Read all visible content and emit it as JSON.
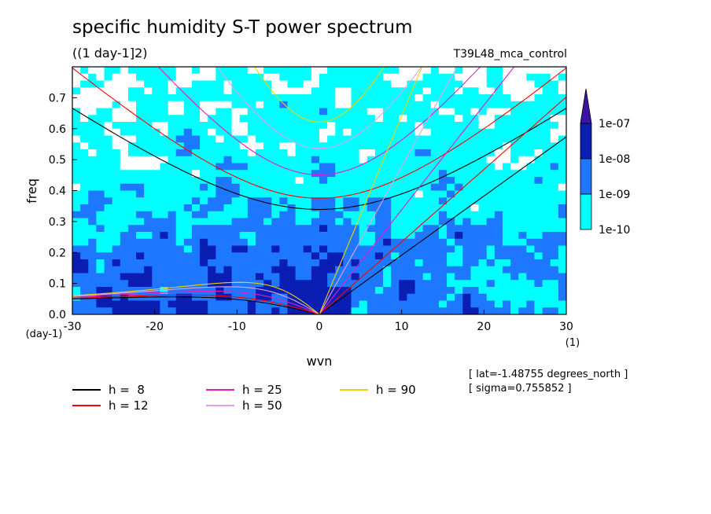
{
  "title": "specific humidity S-T power spectrum",
  "subtitle": "((1 day-1]2)",
  "run_label": "T39L48_mca_control",
  "meta": {
    "lat": "[ lat=-1.48755 degrees_north ]",
    "sigma": "[ sigma=0.755852 ]"
  },
  "chart_data": {
    "type": "heatmap",
    "xlabel": "wvn",
    "ylabel": "freq",
    "x_unit": "(1)",
    "y_unit": "(day-1)",
    "xlim": [
      -30,
      30
    ],
    "ylim": [
      0,
      0.8
    ],
    "x_ticks": [
      -30,
      -20,
      -10,
      0,
      10,
      20,
      30
    ],
    "x_tick_labels": [
      "-30",
      "-20",
      "-10",
      "0",
      "10",
      "20",
      "30"
    ],
    "y_ticks": [
      0,
      0.1,
      0.2,
      0.3,
      0.4,
      0.5,
      0.6,
      0.7
    ],
    "y_tick_labels": [
      "0.0",
      "0.1",
      "0.2",
      "0.3",
      "0.4",
      "0.5",
      "0.6",
      "0.7"
    ],
    "colorbar": {
      "levels": [
        "1e-10",
        "1e-09",
        "1e-08",
        "1e-07"
      ],
      "colors": [
        "#ffffff",
        "#00ffff",
        "#1e78ff",
        "#0a1eb4",
        "#3c14a0"
      ]
    },
    "dispersion_curves": [
      {
        "label": "h =  8",
        "h": 8,
        "color": "#000000"
      },
      {
        "label": "h = 12",
        "h": 12,
        "color": "#ff0000"
      },
      {
        "label": "h = 25",
        "h": 25,
        "color": "#e619c8"
      },
      {
        "label": "h = 50",
        "h": 50,
        "color": "#e6a0e6"
      },
      {
        "label": "h = 90",
        "h": 90,
        "color": "#f0d200"
      }
    ]
  }
}
